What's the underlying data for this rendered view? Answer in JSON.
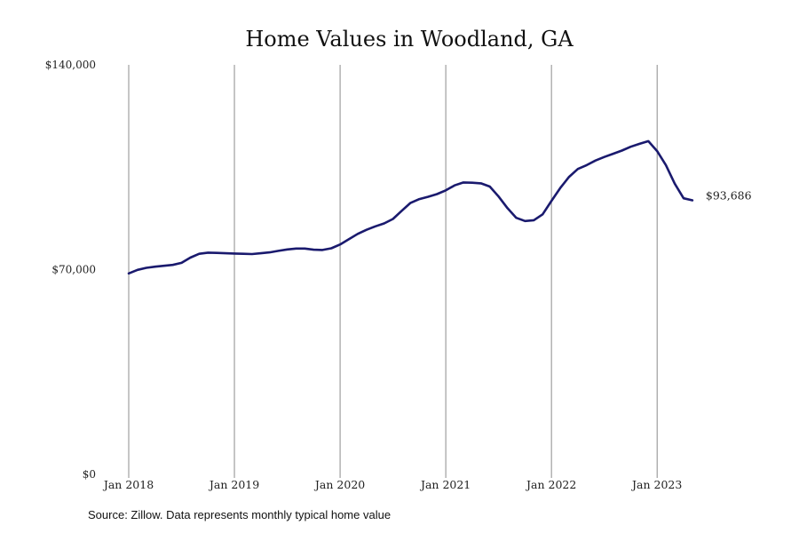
{
  "chart_data": {
    "type": "line",
    "title": "Home Values in Woodland, GA",
    "xlabel": "",
    "ylabel": "",
    "ylim": [
      0,
      140000
    ],
    "y_ticks": [
      "$0",
      "$70,000",
      "$140,000"
    ],
    "y_tick_values": [
      0,
      70000,
      140000
    ],
    "x_ticks": [
      "Jan 2018",
      "Jan 2019",
      "Jan 2020",
      "Jan 2021",
      "Jan 2022",
      "Jan 2023"
    ],
    "x_tick_values": [
      "2018-01",
      "2019-01",
      "2020-01",
      "2021-01",
      "2022-01",
      "2023-01"
    ],
    "grid": "vertical",
    "line_color": "#1a1a6e",
    "end_label": "$93,686",
    "series": [
      {
        "x": [
          "2018-01",
          "2018-02",
          "2018-03",
          "2018-04",
          "2018-05",
          "2018-06",
          "2018-07",
          "2018-08",
          "2018-09",
          "2018-10",
          "2018-11",
          "2018-12",
          "2019-01",
          "2019-02",
          "2019-03",
          "2019-04",
          "2019-05",
          "2019-06",
          "2019-07",
          "2019-08",
          "2019-09",
          "2019-10",
          "2019-11",
          "2019-12",
          "2020-01",
          "2020-02",
          "2020-03",
          "2020-04",
          "2020-05",
          "2020-06",
          "2020-07",
          "2020-08",
          "2020-09",
          "2020-10",
          "2020-11",
          "2020-12",
          "2021-01",
          "2021-02",
          "2021-03",
          "2021-04",
          "2021-05",
          "2021-06",
          "2021-07",
          "2021-08",
          "2021-09",
          "2021-10",
          "2021-11",
          "2021-12",
          "2022-01",
          "2022-02",
          "2022-03",
          "2022-04",
          "2022-05",
          "2022-06",
          "2022-07",
          "2022-08",
          "2022-09",
          "2022-10",
          "2022-11",
          "2022-12",
          "2023-01",
          "2023-02",
          "2023-03",
          "2023-04",
          "2023-05"
        ],
        "values": [
          68700,
          69900,
          70600,
          71000,
          71300,
          71600,
          72300,
          74100,
          75400,
          75800,
          75700,
          75600,
          75500,
          75400,
          75300,
          75600,
          75900,
          76400,
          76900,
          77200,
          77200,
          76800,
          76700,
          77300,
          78600,
          80400,
          82200,
          83600,
          84800,
          85800,
          87300,
          90100,
          92800,
          94100,
          94900,
          95800,
          97100,
          98800,
          99800,
          99700,
          99500,
          98400,
          95000,
          91000,
          87700,
          86600,
          86900,
          88900,
          93500,
          97900,
          101700,
          104400,
          105700,
          107300,
          108500,
          109600,
          110700,
          112000,
          113000,
          113900,
          110500,
          105700,
          99400,
          94400,
          93686
        ]
      }
    ]
  },
  "footer": {
    "source": "Source: Zillow. Data represents monthly typical home value"
  }
}
